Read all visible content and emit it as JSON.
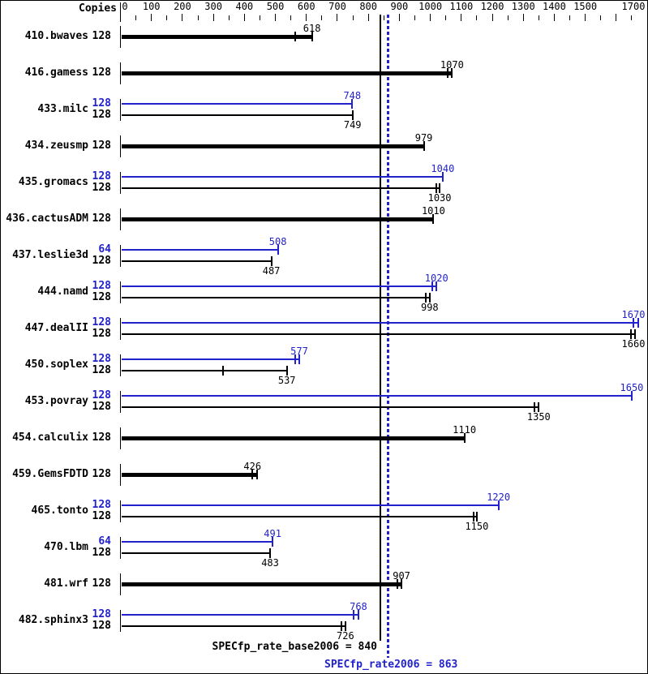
{
  "copies_header": "Copies",
  "colors": {
    "base": "#000000",
    "peak": "#2222cc",
    "background": "#ffffff"
  },
  "chart_data": {
    "type": "bar",
    "orientation": "horizontal",
    "copies_header": "Copies",
    "axis": {
      "min": 0,
      "max": 1700,
      "major_step": 100,
      "minor_step": 50,
      "labeled_ticks": [
        0,
        100,
        200,
        300,
        400,
        500,
        600,
        700,
        800,
        900,
        1000,
        1100,
        1200,
        1300,
        1400,
        1500,
        1700
      ],
      "grid": false
    },
    "legend": {
      "peak_color_meaning": "peak run",
      "base_color_meaning": "base run"
    },
    "benchmarks": [
      {
        "name": "410.bwaves",
        "bars": [
          {
            "run": "base",
            "copies": "128",
            "value": 618,
            "ticks": [
              563,
              618
            ],
            "thick": true
          }
        ]
      },
      {
        "name": "416.gamess",
        "bars": [
          {
            "run": "base",
            "copies": "128",
            "value": 1070,
            "ticks": [
              1057,
              1070
            ],
            "thick": true
          }
        ]
      },
      {
        "name": "433.milc",
        "bars": [
          {
            "run": "peak",
            "copies": "128",
            "value": 748,
            "ticks": [
              748
            ],
            "thick": false
          },
          {
            "run": "base",
            "copies": "128",
            "value": 749,
            "ticks": [
              749
            ],
            "thick": false
          }
        ]
      },
      {
        "name": "434.zeusmp",
        "bars": [
          {
            "run": "base",
            "copies": "128",
            "value": 979,
            "ticks": [
              979
            ],
            "thick": true
          }
        ]
      },
      {
        "name": "435.gromacs",
        "bars": [
          {
            "run": "peak",
            "copies": "128",
            "value": 1040,
            "ticks": [
              1040
            ],
            "thick": false
          },
          {
            "run": "base",
            "copies": "128",
            "value": 1030,
            "ticks": [
              1020,
              1030
            ],
            "thick": false
          }
        ]
      },
      {
        "name": "436.cactusADM",
        "bars": [
          {
            "run": "base",
            "copies": "128",
            "value": 1010,
            "ticks": [
              1010
            ],
            "thick": true
          }
        ]
      },
      {
        "name": "437.leslie3d",
        "bars": [
          {
            "run": "peak",
            "copies": "64",
            "value": 508,
            "ticks": [
              508
            ],
            "thick": false
          },
          {
            "run": "base",
            "copies": "128",
            "value": 487,
            "ticks": [
              487
            ],
            "thick": false
          }
        ]
      },
      {
        "name": "444.namd",
        "bars": [
          {
            "run": "peak",
            "copies": "128",
            "value": 1020,
            "ticks": [
              1005,
              1020
            ],
            "thick": false
          },
          {
            "run": "base",
            "copies": "128",
            "value": 998,
            "ticks": [
              985,
              998
            ],
            "thick": false
          }
        ]
      },
      {
        "name": "447.dealII",
        "bars": [
          {
            "run": "peak",
            "copies": "128",
            "value": 1670,
            "ticks": [
              1656,
              1670
            ],
            "thick": false
          },
          {
            "run": "base",
            "copies": "128",
            "value": 1660,
            "ticks": [
              1648,
              1660
            ],
            "thick": false
          }
        ]
      },
      {
        "name": "450.soplex",
        "bars": [
          {
            "run": "peak",
            "copies": "128",
            "value": 577,
            "ticks": [
              565,
              577
            ],
            "thick": false
          },
          {
            "run": "base",
            "copies": "128",
            "value": 537,
            "ticks": [
              330,
              537
            ],
            "thick": false
          }
        ]
      },
      {
        "name": "453.povray",
        "bars": [
          {
            "run": "peak",
            "copies": "128",
            "value": 1650,
            "ticks": [
              1650
            ],
            "thick": false
          },
          {
            "run": "base",
            "copies": "128",
            "value": 1350,
            "ticks": [
              1337,
              1350
            ],
            "thick": false
          }
        ]
      },
      {
        "name": "454.calculix",
        "bars": [
          {
            "run": "base",
            "copies": "128",
            "value": 1110,
            "ticks": [
              1110
            ],
            "thick": true
          }
        ]
      },
      {
        "name": "459.GemsFDTD",
        "bars": [
          {
            "run": "base",
            "copies": "128",
            "value": 426,
            "ticks": [
              426,
              440
            ],
            "thick": true
          }
        ]
      },
      {
        "name": "465.tonto",
        "bars": [
          {
            "run": "peak",
            "copies": "128",
            "value": 1220,
            "ticks": [
              1220
            ],
            "thick": false
          },
          {
            "run": "base",
            "copies": "128",
            "value": 1150,
            "ticks": [
              1139,
              1150
            ],
            "thick": false
          }
        ]
      },
      {
        "name": "470.lbm",
        "bars": [
          {
            "run": "peak",
            "copies": "64",
            "value": 491,
            "ticks": [
              491
            ],
            "thick": false
          },
          {
            "run": "base",
            "copies": "128",
            "value": 483,
            "ticks": [
              483
            ],
            "thick": false
          }
        ]
      },
      {
        "name": "481.wrf",
        "bars": [
          {
            "run": "base",
            "copies": "128",
            "value": 907,
            "ticks": [
              895,
              907
            ],
            "thick": true
          }
        ]
      },
      {
        "name": "482.sphinx3",
        "bars": [
          {
            "run": "peak",
            "copies": "128",
            "value": 768,
            "ticks": [
              753,
              768
            ],
            "thick": false
          },
          {
            "run": "base",
            "copies": "128",
            "value": 726,
            "ticks": [
              714,
              726
            ],
            "thick": false
          }
        ]
      }
    ],
    "reference_lines": [
      {
        "name": "base",
        "value": 840,
        "style": "solid",
        "color": "#000000"
      },
      {
        "name": "peak",
        "value": 863,
        "style": "dotted",
        "color": "#2222cc"
      }
    ],
    "summary": {
      "base_text": "SPECfp_rate_base2006 = 840",
      "base_value": 840,
      "peak_text": "SPECfp_rate2006 = 863",
      "peak_value": 863
    }
  }
}
